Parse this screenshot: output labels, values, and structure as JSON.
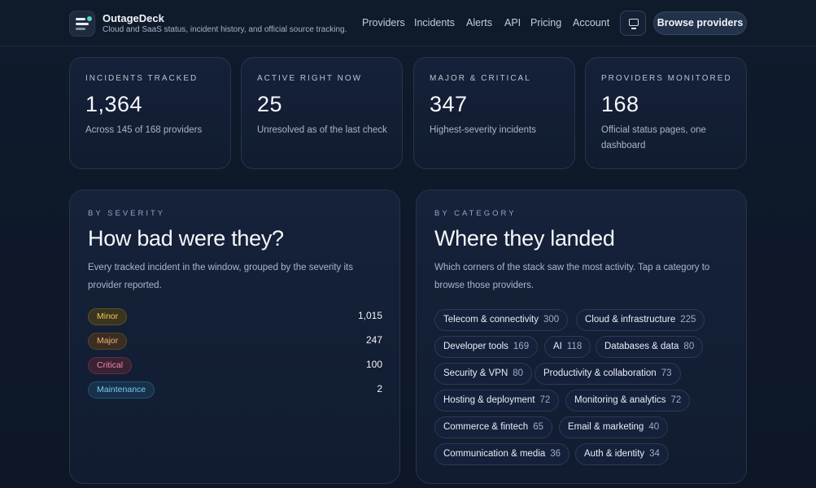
{
  "brand": {
    "name": "OutageDeck",
    "tagline": "Cloud and SaaS status, incident history, and official source tracking."
  },
  "nav": [
    "Providers",
    "Incidents",
    "Alerts",
    "API",
    "Pricing",
    "Account"
  ],
  "header": {
    "display_icon": "monitor-icon",
    "cta": "Browse providers"
  },
  "stats": [
    {
      "label": "INCIDENTS TRACKED",
      "value": "1,364",
      "sub": "Across 145 of 168 providers"
    },
    {
      "label": "ACTIVE RIGHT NOW",
      "value": "25",
      "sub": "Unresolved as of the last check"
    },
    {
      "label": "MAJOR & CRITICAL",
      "value": "347",
      "sub": "Highest-severity incidents"
    },
    {
      "label": "PROVIDERS MONITORED",
      "value": "168",
      "sub": "Official status pages, one dashboard"
    }
  ],
  "severity": {
    "eyebrow": "BY SEVERITY",
    "title": "How bad were they?",
    "desc": "Every tracked incident in the window, grouped by the severity its provider reported.",
    "items": [
      {
        "label": "Minor",
        "count": "1,015"
      },
      {
        "label": "Major",
        "count": "247"
      },
      {
        "label": "Critical",
        "count": "100"
      },
      {
        "label": "Maintenance",
        "count": "2"
      }
    ]
  },
  "category": {
    "eyebrow": "BY CATEGORY",
    "title": "Where they landed",
    "desc": "Which corners of the stack saw the most activity. Tap a category to browse those providers.",
    "items": [
      {
        "label": "Telecom & connectivity",
        "count": "300"
      },
      {
        "label": "Cloud & infrastructure",
        "count": "225"
      },
      {
        "label": "Developer tools",
        "count": "169"
      },
      {
        "label": "AI",
        "count": "118"
      },
      {
        "label": "Databases & data",
        "count": "80"
      },
      {
        "label": "Security & VPN",
        "count": "80"
      },
      {
        "label": "Productivity & collaboration",
        "count": "73"
      },
      {
        "label": "Hosting & deployment",
        "count": "72"
      },
      {
        "label": "Monitoring & analytics",
        "count": "72"
      },
      {
        "label": "Commerce & fintech",
        "count": "65"
      },
      {
        "label": "Email & marketing",
        "count": "40"
      },
      {
        "label": "Communication & media",
        "count": "36"
      },
      {
        "label": "Auth & identity",
        "count": "34"
      }
    ]
  }
}
